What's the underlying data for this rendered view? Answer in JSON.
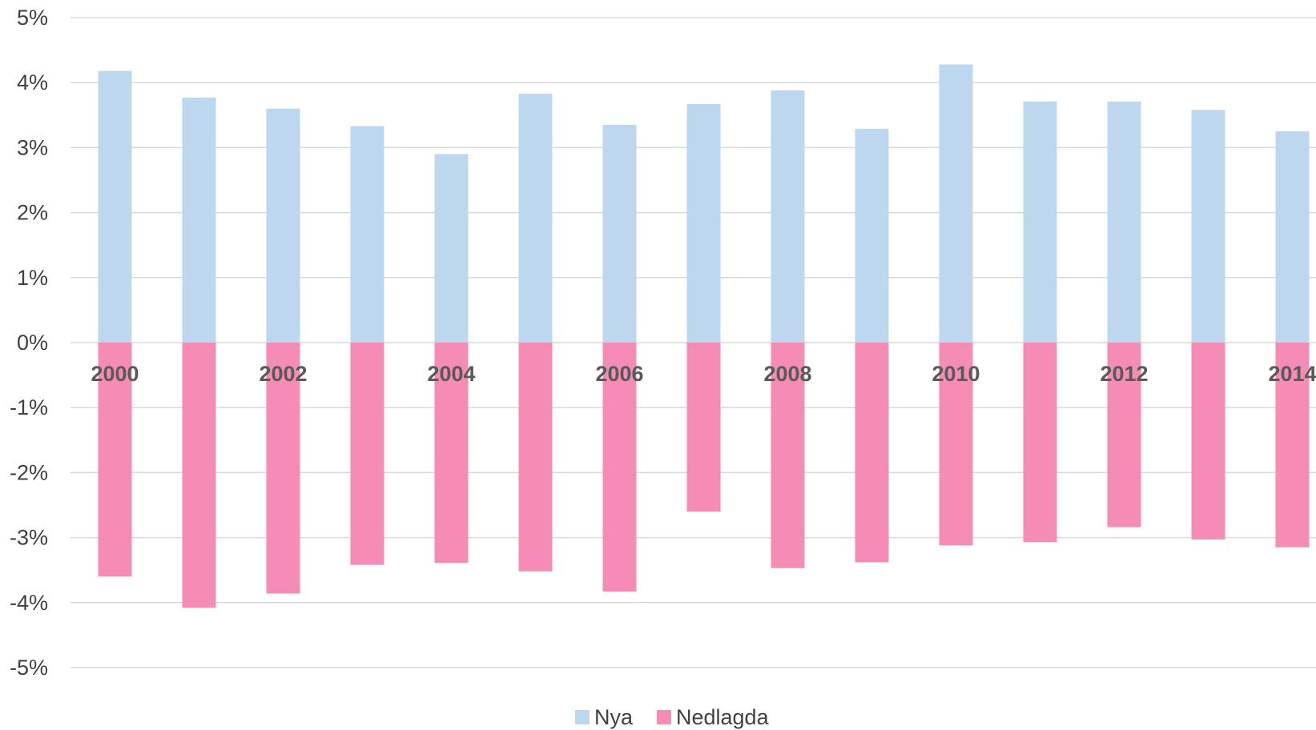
{
  "chart_data": {
    "type": "bar",
    "stacked": true,
    "categories": [
      "2000",
      "2001",
      "2002",
      "2003",
      "2004",
      "2005",
      "2006",
      "2007",
      "2008",
      "2009",
      "2010",
      "2011",
      "2012",
      "2013",
      "2014"
    ],
    "x_tick_labels": [
      "2000",
      "",
      "2002",
      "",
      "2004",
      "",
      "2006",
      "",
      "2008",
      "",
      "2010",
      "",
      "2012",
      "",
      "2014"
    ],
    "series": [
      {
        "name": "Nya",
        "color": "#bdd7ee",
        "values": [
          4.18,
          3.77,
          3.6,
          3.33,
          2.9,
          3.83,
          3.35,
          3.67,
          3.88,
          3.29,
          4.28,
          3.71,
          3.71,
          3.58,
          3.25
        ]
      },
      {
        "name": "Nedlagda",
        "color": "#f48cb6",
        "values": [
          -3.6,
          -4.08,
          -3.86,
          -3.42,
          -3.39,
          -3.52,
          -3.83,
          -2.6,
          -3.47,
          -3.38,
          -3.12,
          -3.07,
          -2.84,
          -3.03,
          -3.15
        ]
      }
    ],
    "ylim": [
      -5,
      5
    ],
    "y_ticks": [
      5,
      4,
      3,
      2,
      1,
      0,
      -1,
      -2,
      -3,
      -4,
      -5
    ],
    "y_tick_labels": [
      "5%",
      "4%",
      "3%",
      "2%",
      "1%",
      "0%",
      "-1%",
      "-2%",
      "-3%",
      "-4%",
      "-5%"
    ],
    "grid": true,
    "legend_position": "bottom",
    "title": "",
    "xlabel": "",
    "ylabel": ""
  }
}
